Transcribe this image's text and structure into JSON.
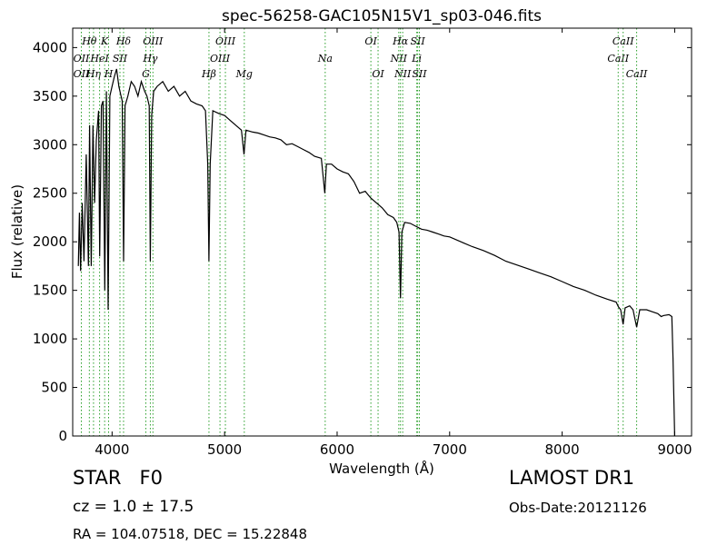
{
  "chart_data": {
    "type": "line",
    "title": "spec-56258-GAC105N15V1_sp03-046.fits",
    "xlabel": "Wavelength (Å)",
    "ylabel": "Flux (relative)",
    "xlim": [
      3650,
      9150
    ],
    "ylim": [
      0,
      4200
    ],
    "xticks": [
      "4000",
      "5000",
      "6000",
      "7000",
      "8000",
      "9000"
    ],
    "yticks": [
      "0",
      "500",
      "1000",
      "1500",
      "2000",
      "2500",
      "3000",
      "3500",
      "4000"
    ],
    "grid": false,
    "line_color": "#000000",
    "marker_color": "#2ca02c",
    "spectrum": [
      [
        3700,
        1750
      ],
      [
        3710,
        2300
      ],
      [
        3720,
        1700
      ],
      [
        3735,
        2400
      ],
      [
        3750,
        1800
      ],
      [
        3770,
        2900
      ],
      [
        3790,
        1750
      ],
      [
        3800,
        3200
      ],
      [
        3815,
        1750
      ],
      [
        3830,
        3200
      ],
      [
        3845,
        2400
      ],
      [
        3860,
        3050
      ],
      [
        3880,
        3350
      ],
      [
        3890,
        1850
      ],
      [
        3905,
        3400
      ],
      [
        3920,
        3450
      ],
      [
        3935,
        1500
      ],
      [
        3950,
        3550
      ],
      [
        3965,
        1300
      ],
      [
        3980,
        3500
      ],
      [
        4000,
        3600
      ],
      [
        4020,
        3700
      ],
      [
        4040,
        3780
      ],
      [
        4060,
        3600
      ],
      [
        4080,
        3500
      ],
      [
        4090,
        3450
      ],
      [
        4102,
        1800
      ],
      [
        4115,
        3400
      ],
      [
        4140,
        3500
      ],
      [
        4170,
        3650
      ],
      [
        4200,
        3600
      ],
      [
        4230,
        3500
      ],
      [
        4260,
        3650
      ],
      [
        4290,
        3550
      ],
      [
        4310,
        3500
      ],
      [
        4330,
        3400
      ],
      [
        4340,
        1800
      ],
      [
        4352,
        3300
      ],
      [
        4370,
        3550
      ],
      [
        4400,
        3600
      ],
      [
        4450,
        3650
      ],
      [
        4500,
        3550
      ],
      [
        4550,
        3600
      ],
      [
        4600,
        3500
      ],
      [
        4650,
        3550
      ],
      [
        4700,
        3450
      ],
      [
        4750,
        3420
      ],
      [
        4800,
        3400
      ],
      [
        4830,
        3350
      ],
      [
        4850,
        2800
      ],
      [
        4861,
        1800
      ],
      [
        4872,
        2800
      ],
      [
        4895,
        3350
      ],
      [
        4950,
        3320
      ],
      [
        5000,
        3300
      ],
      [
        5050,
        3250
      ],
      [
        5100,
        3200
      ],
      [
        5150,
        3150
      ],
      [
        5172,
        2900
      ],
      [
        5190,
        3150
      ],
      [
        5250,
        3130
      ],
      [
        5300,
        3120
      ],
      [
        5350,
        3100
      ],
      [
        5400,
        3080
      ],
      [
        5450,
        3070
      ],
      [
        5500,
        3050
      ],
      [
        5550,
        3000
      ],
      [
        5600,
        3010
      ],
      [
        5650,
        2980
      ],
      [
        5700,
        2950
      ],
      [
        5750,
        2920
      ],
      [
        5800,
        2880
      ],
      [
        5860,
        2860
      ],
      [
        5890,
        2500
      ],
      [
        5905,
        2800
      ],
      [
        5950,
        2800
      ],
      [
        6000,
        2750
      ],
      [
        6050,
        2720
      ],
      [
        6100,
        2700
      ],
      [
        6150,
        2620
      ],
      [
        6200,
        2500
      ],
      [
        6250,
        2520
      ],
      [
        6300,
        2450
      ],
      [
        6350,
        2400
      ],
      [
        6400,
        2350
      ],
      [
        6450,
        2280
      ],
      [
        6500,
        2250
      ],
      [
        6530,
        2200
      ],
      [
        6550,
        2100
      ],
      [
        6563,
        1420
      ],
      [
        6575,
        2100
      ],
      [
        6600,
        2200
      ],
      [
        6650,
        2190
      ],
      [
        6700,
        2160
      ],
      [
        6750,
        2130
      ],
      [
        6800,
        2120
      ],
      [
        6850,
        2100
      ],
      [
        6900,
        2080
      ],
      [
        6950,
        2060
      ],
      [
        7000,
        2050
      ],
      [
        7100,
        2000
      ],
      [
        7200,
        1950
      ],
      [
        7300,
        1910
      ],
      [
        7400,
        1860
      ],
      [
        7500,
        1800
      ],
      [
        7600,
        1760
      ],
      [
        7700,
        1720
      ],
      [
        7800,
        1680
      ],
      [
        7900,
        1640
      ],
      [
        8000,
        1590
      ],
      [
        8100,
        1540
      ],
      [
        8200,
        1500
      ],
      [
        8300,
        1450
      ],
      [
        8400,
        1410
      ],
      [
        8480,
        1380
      ],
      [
        8500,
        1330
      ],
      [
        8520,
        1300
      ],
      [
        8542,
        1150
      ],
      [
        8560,
        1320
      ],
      [
        8600,
        1340
      ],
      [
        8630,
        1300
      ],
      [
        8662,
        1120
      ],
      [
        8690,
        1300
      ],
      [
        8750,
        1300
      ],
      [
        8800,
        1280
      ],
      [
        8850,
        1260
      ],
      [
        8880,
        1230
      ],
      [
        8900,
        1240
      ],
      [
        8950,
        1250
      ],
      [
        8975,
        1230
      ],
      [
        8985,
        800
      ],
      [
        9000,
        0
      ]
    ],
    "lines": [
      {
        "name": "OII",
        "w": 3727,
        "label": "OII",
        "row": 2
      },
      {
        "name": "Hθ",
        "w": 3798,
        "label": "Hθ",
        "row": 0
      },
      {
        "name": "OII",
        "w": 3727,
        "label": "OII",
        "row": 1
      },
      {
        "name": "Hη",
        "w": 3835,
        "label": "Hη",
        "row": 2
      },
      {
        "name": "HeI",
        "w": 3889,
        "label": "HeI",
        "row": 1
      },
      {
        "name": "K",
        "w": 3934,
        "label": "K",
        "row": 0
      },
      {
        "name": "H",
        "w": 3969,
        "label": "H",
        "row": 2
      },
      {
        "name": "SII",
        "w": 4070,
        "label": "SII",
        "row": 1
      },
      {
        "name": "Hδ",
        "w": 4102,
        "label": "Hδ",
        "row": 0
      },
      {
        "name": "G",
        "w": 4300,
        "label": "G",
        "row": 2
      },
      {
        "name": "Hγ",
        "w": 4340,
        "label": "Hγ",
        "row": 1
      },
      {
        "name": "OIII",
        "w": 4363,
        "label": "OIII",
        "row": 0
      },
      {
        "name": "Hβ",
        "w": 4861,
        "label": "Hβ",
        "row": 2
      },
      {
        "name": "OIII",
        "w": 4959,
        "label": "OIII",
        "row": 1
      },
      {
        "name": "OIII",
        "w": 5007,
        "label": "OIII",
        "row": 0
      },
      {
        "name": "Mg",
        "w": 5175,
        "label": "Mg",
        "row": 2
      },
      {
        "name": "Na",
        "w": 5894,
        "label": "Na",
        "row": 1
      },
      {
        "name": "OI",
        "w": 6300,
        "label": "OI",
        "row": 0
      },
      {
        "name": "OI",
        "w": 6364,
        "label": "OI",
        "row": 2
      },
      {
        "name": "NII",
        "w": 6548,
        "label": "NII",
        "row": 1
      },
      {
        "name": "NII",
        "w": 6583,
        "label": "NII",
        "row": 2
      },
      {
        "name": "Hα",
        "w": 6563,
        "label": "Hα",
        "row": 0
      },
      {
        "name": "Li",
        "w": 6708,
        "label": "Li",
        "row": 1
      },
      {
        "name": "SII",
        "w": 6716,
        "label": "SII",
        "row": 0
      },
      {
        "name": "SII",
        "w": 6731,
        "label": "SII",
        "row": 2
      },
      {
        "name": "CaII",
        "w": 8498,
        "label": "CaII",
        "row": 1
      },
      {
        "name": "CaII",
        "w": 8542,
        "label": "CaII",
        "row": 0
      },
      {
        "name": "CaII",
        "w": 8662,
        "label": "CaII",
        "row": 2
      }
    ]
  },
  "info": {
    "class": "STAR",
    "subclass": "F0",
    "cz": "cz = 1.0 ± 17.5",
    "radec": "RA = 104.07518, DEC = 15.22848",
    "survey": "LAMOST DR1",
    "obsdate": "Obs-Date:20121126"
  }
}
